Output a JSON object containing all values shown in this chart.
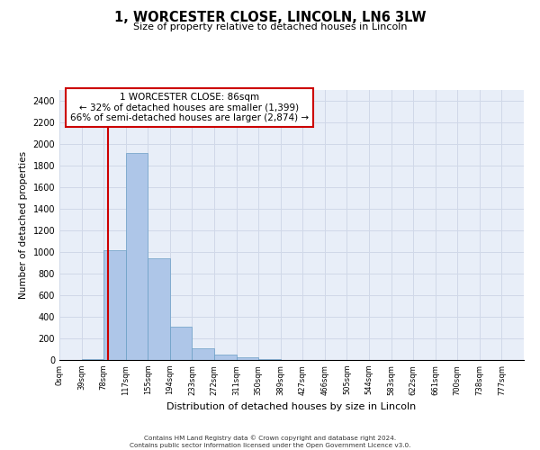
{
  "title": "1, WORCESTER CLOSE, LINCOLN, LN6 3LW",
  "subtitle": "Size of property relative to detached houses in Lincoln",
  "xlabel": "Distribution of detached houses by size in Lincoln",
  "ylabel": "Number of detached properties",
  "bin_labels": [
    "0sqm",
    "39sqm",
    "78sqm",
    "117sqm",
    "155sqm",
    "194sqm",
    "233sqm",
    "272sqm",
    "311sqm",
    "350sqm",
    "389sqm",
    "427sqm",
    "466sqm",
    "505sqm",
    "544sqm",
    "583sqm",
    "622sqm",
    "661sqm",
    "700sqm",
    "738sqm",
    "777sqm"
  ],
  "bar_heights": [
    0,
    5,
    1020,
    1920,
    940,
    310,
    105,
    50,
    25,
    5,
    0,
    0,
    0,
    0,
    0,
    0,
    0,
    0,
    0,
    0,
    0
  ],
  "bar_color": "#aec6e8",
  "bar_edge_color": "#6a9ec5",
  "property_line_color": "#cc0000",
  "annotation_text": "1 WORCESTER CLOSE: 86sqm\n← 32% of detached houses are smaller (1,399)\n66% of semi-detached houses are larger (2,874) →",
  "annotation_box_color": "#ffffff",
  "annotation_box_edge_color": "#cc0000",
  "ylim": [
    0,
    2500
  ],
  "yticks": [
    0,
    200,
    400,
    600,
    800,
    1000,
    1200,
    1400,
    1600,
    1800,
    2000,
    2200,
    2400
  ],
  "grid_color": "#d0d8e8",
  "background_color": "#e8eef8",
  "footer_line1": "Contains HM Land Registry data © Crown copyright and database right 2024.",
  "footer_line2": "Contains public sector information licensed under the Open Government Licence v3.0."
}
